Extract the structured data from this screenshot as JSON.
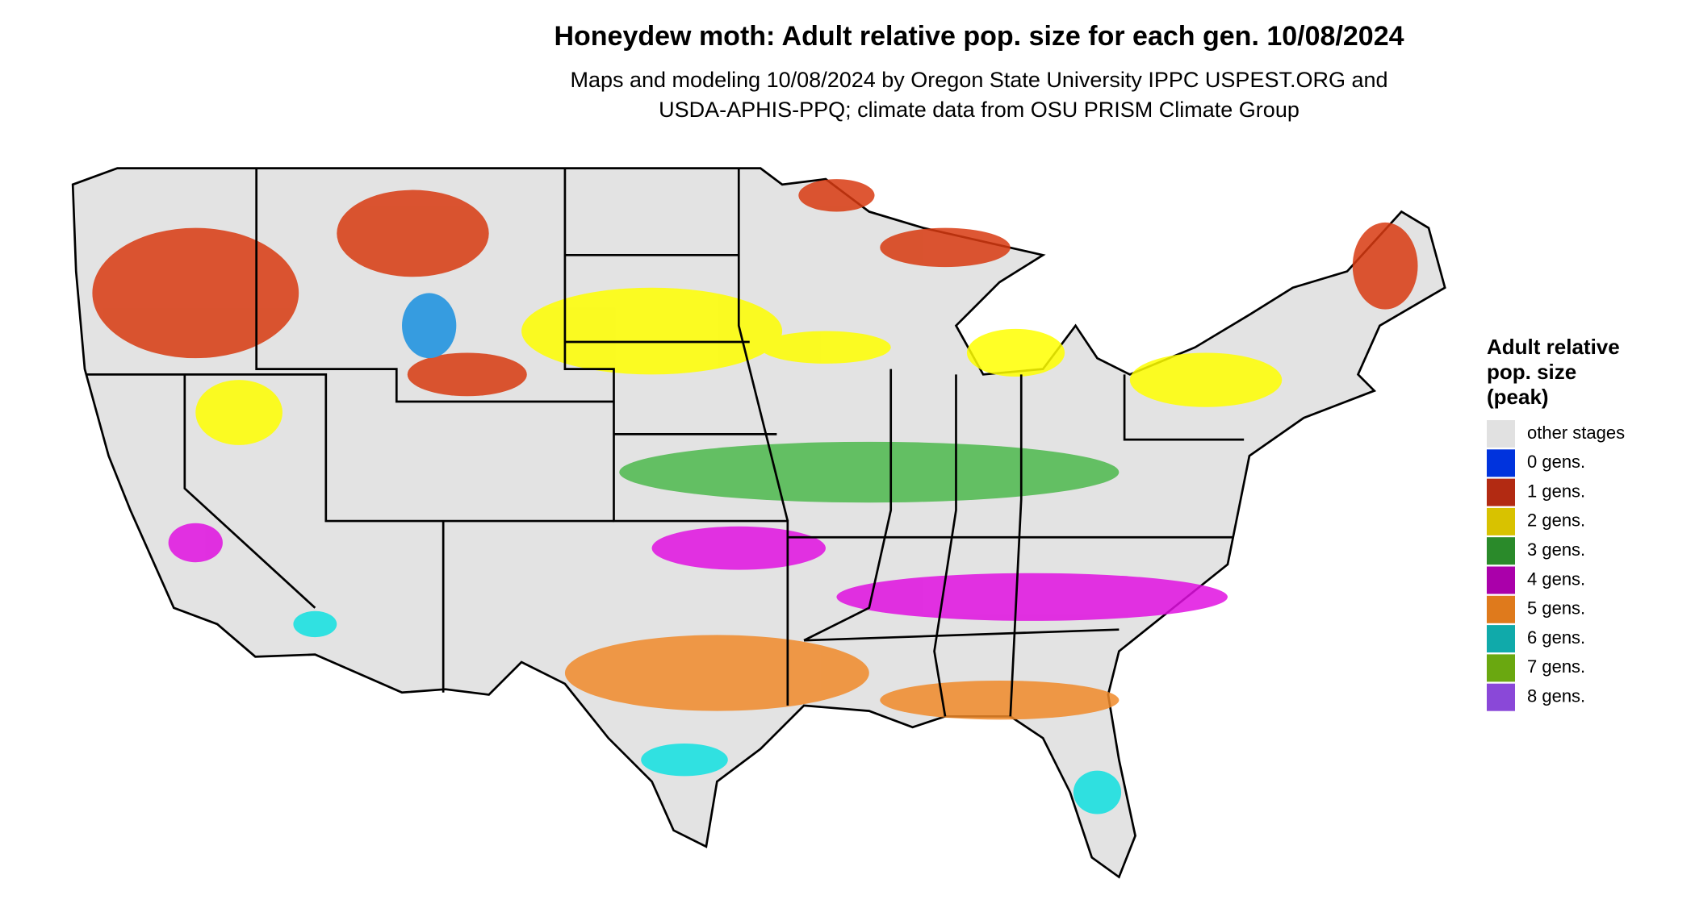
{
  "title": "Honeydew moth: Adult relative pop. size for each gen. 10/08/2024",
  "subtitle": [
    "Maps and modeling 10/08/2024 by Oregon State University IPPC USPEST.ORG and",
    "USDA-APHIS-PPQ; climate data from OSU PRISM Climate Group"
  ],
  "legend": {
    "title": [
      "Adult relative",
      "pop. size",
      "(peak)"
    ],
    "items": [
      {
        "label": "other stages",
        "color": "#e1e1e1"
      },
      {
        "label": "0 gens.",
        "color": "#0033dd"
      },
      {
        "label": "1 gens.",
        "color": "#b22a12"
      },
      {
        "label": "2 gens.",
        "color": "#d8c200"
      },
      {
        "label": "3 gens.",
        "color": "#2a8a2a"
      },
      {
        "label": "4 gens.",
        "color": "#aa00aa"
      },
      {
        "label": "5 gens.",
        "color": "#df7a1c"
      },
      {
        "label": "6 gens.",
        "color": "#10aaaa"
      },
      {
        "label": "7 gens.",
        "color": "#6aa810"
      },
      {
        "label": "8 gens.",
        "color": "#8a48d8"
      }
    ]
  }
}
